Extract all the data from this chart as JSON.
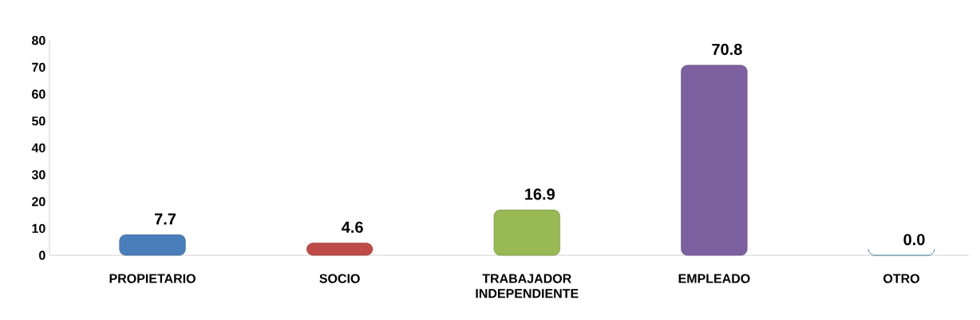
{
  "chart_data": {
    "type": "bar",
    "categories": [
      "PROPIETARIO",
      "SOCIO",
      "TRABAJADOR INDEPENDIENTE",
      "EMPLEADO",
      "OTRO"
    ],
    "values": [
      7.7,
      4.6,
      16.9,
      70.8,
      0.0
    ],
    "colors": [
      "#4a7ebb",
      "#be4b48",
      "#98b954",
      "#7d60a0",
      "#46aac5"
    ],
    "ylim": [
      0,
      80
    ],
    "yticks": [
      0,
      10,
      20,
      30,
      40,
      50,
      60,
      70,
      80
    ],
    "value_labels": [
      "7.7",
      "4.6",
      "16.9",
      "70.8",
      "0.0"
    ],
    "grid": false
  }
}
